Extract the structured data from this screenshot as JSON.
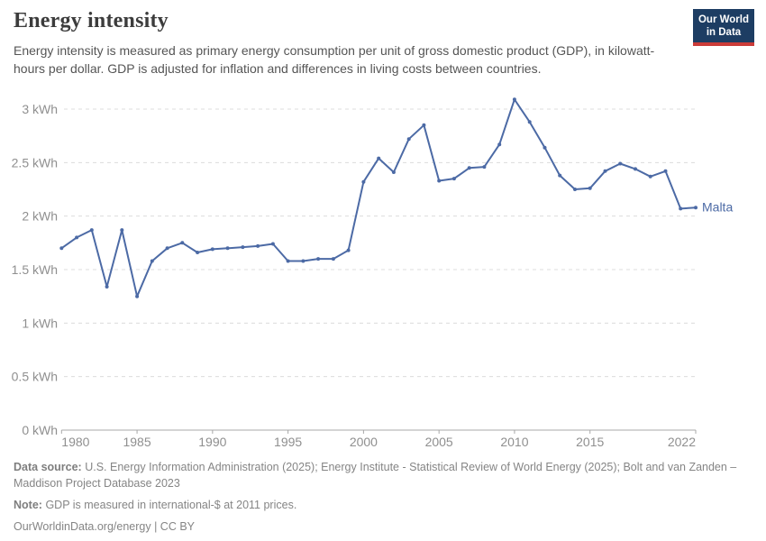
{
  "header": {
    "title": "Energy intensity",
    "subtitle": "Energy intensity is measured as primary energy consumption per unit of gross domestic product (GDP), in kilowatt-hours per dollar. GDP is adjusted for inflation and differences in living costs between countries.",
    "logo": {
      "line1": "Our World",
      "line2": "in Data",
      "bg_color": "#1d3d63",
      "bar_color": "#cb3b38"
    }
  },
  "chart_data": {
    "type": "line",
    "title": "Energy intensity",
    "unit": "kWh",
    "xlabel": "",
    "ylabel": "",
    "ylim": [
      0,
      3
    ],
    "x_range": [
      1980,
      2022
    ],
    "grid": "horizontal-dashed",
    "legend_position": "end-of-line-label",
    "yticks": [
      0,
      0.5,
      1,
      1.5,
      2,
      2.5,
      3
    ],
    "ytick_labels": [
      "0 kWh",
      "0.5 kWh",
      "1 kWh",
      "1.5 kWh",
      "2 kWh",
      "2.5 kWh",
      "3 kWh"
    ],
    "xticks": [
      1980,
      1985,
      1990,
      1995,
      2000,
      2005,
      2010,
      2015,
      2022
    ],
    "axis_color": "#a8a8a8",
    "gridline_color": "#dcdcdc",
    "tick_label_color": "#8f8f8f",
    "series": [
      {
        "name": "Malta",
        "color": "#4c6aa5",
        "years": [
          1980,
          1981,
          1982,
          1983,
          1984,
          1985,
          1986,
          1987,
          1988,
          1989,
          1990,
          1991,
          1992,
          1993,
          1994,
          1995,
          1996,
          1997,
          1998,
          1999,
          2000,
          2001,
          2002,
          2003,
          2004,
          2005,
          2006,
          2007,
          2008,
          2009,
          2010,
          2011,
          2012,
          2013,
          2014,
          2015,
          2016,
          2017,
          2018,
          2019,
          2020,
          2021,
          2022
        ],
        "values": [
          1.7,
          1.8,
          1.87,
          1.34,
          1.87,
          1.25,
          1.58,
          1.7,
          1.75,
          1.66,
          1.69,
          1.7,
          1.71,
          1.72,
          1.74,
          1.58,
          1.58,
          1.6,
          1.6,
          1.68,
          2.32,
          2.54,
          2.41,
          2.72,
          2.85,
          2.33,
          2.35,
          2.45,
          2.46,
          2.67,
          3.09,
          2.88,
          2.64,
          2.38,
          2.25,
          2.26,
          2.42,
          2.49,
          2.44,
          2.37,
          2.42,
          2.07,
          2.08
        ]
      }
    ]
  },
  "footer": {
    "source_label": "Data source:",
    "source_text": "U.S. Energy Information Administration (2025); Energy Institute - Statistical Review of World Energy (2025); Bolt and van Zanden – Maddison Project Database 2023",
    "note_label": "Note:",
    "note_text": "GDP is measured in international-$ at 2011 prices.",
    "license": "OurWorldinData.org/energy | CC BY"
  }
}
